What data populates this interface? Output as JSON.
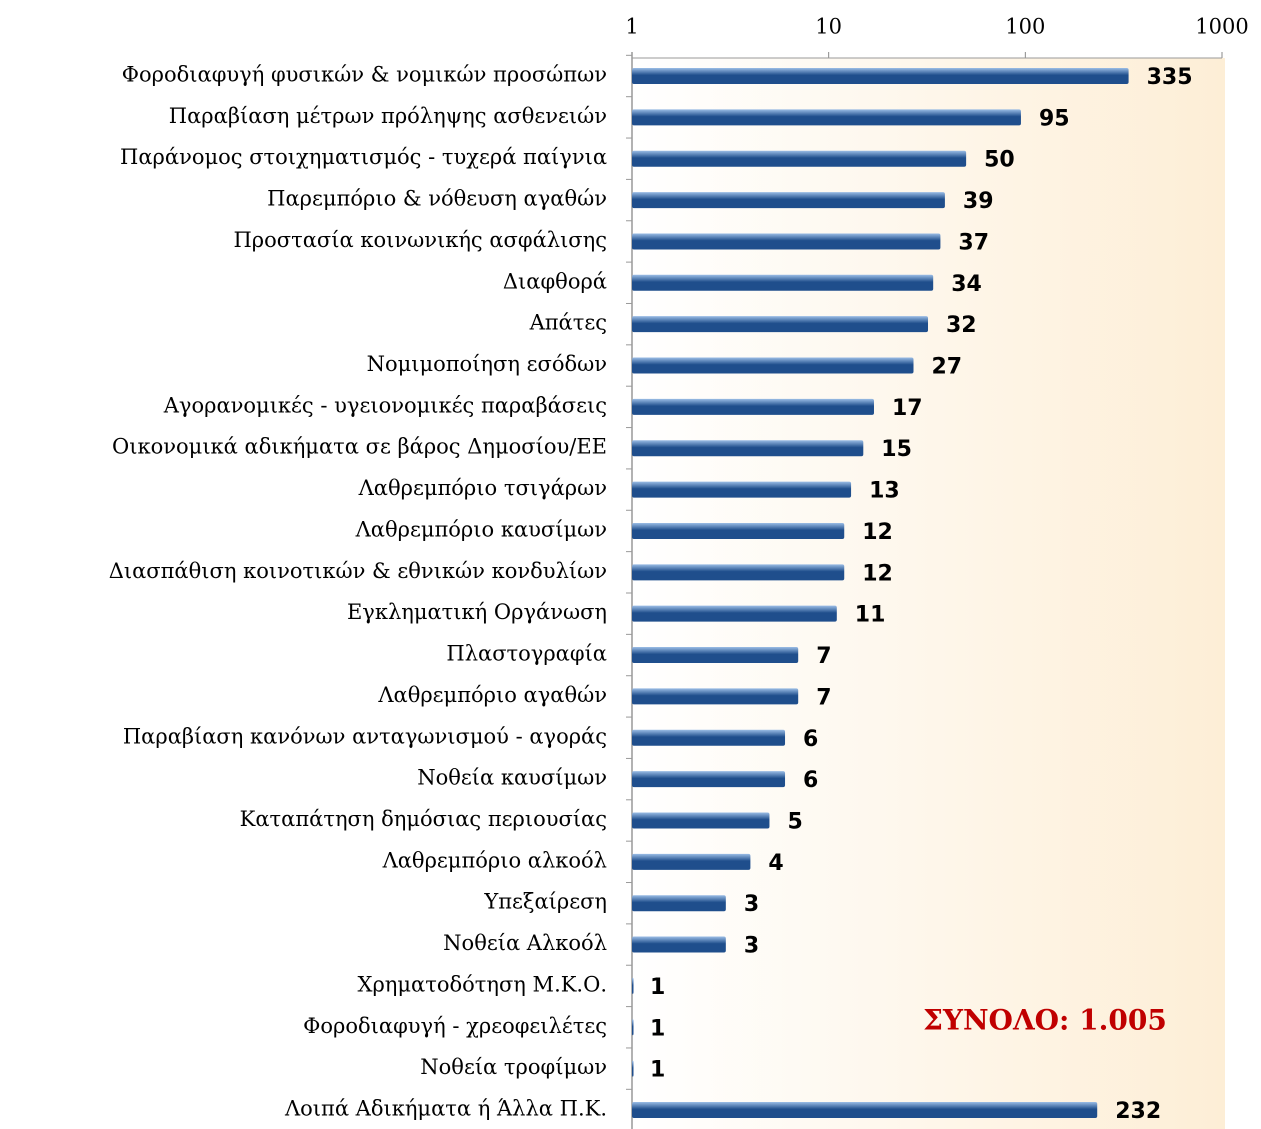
{
  "chart_data": {
    "type": "bar",
    "orientation": "horizontal",
    "xscale": "log",
    "categories": [
      "Φοροδιαφυγή φυσικών & νομικών προσώπων",
      "Παραβίαση μέτρων πρόληψης ασθενειών",
      "Παράνομος στοιχηματισμός - τυχερά παίγνια",
      "Παρεμπόριο & νόθευση αγαθών",
      "Προστασία κοινωνικής ασφάλισης",
      "Διαφθορά",
      "Απάτες",
      "Νομιμοποίηση εσόδων",
      "Αγορανομικές - υγειονομικές παραβάσεις",
      "Οικονομικά αδικήματα σε βάρος Δημοσίου/ΕΕ",
      "Λαθρεμπόριο τσιγάρων",
      "Λαθρεμπόριο καυσίμων",
      "Διασπάθιση κοινοτικών & εθνικών κονδυλίων",
      "Εγκληματική Οργάνωση",
      "Πλαστογραφία",
      "Λαθρεμπόριο αγαθών",
      "Παραβίαση κανόνων ανταγωνισμού - αγοράς",
      "Νοθεία καυσίμων",
      "Καταπάτηση δημόσιας περιουσίας",
      "Λαθρεμπόριο αλκοόλ",
      "Υπεξαίρεση",
      "Νοθεία Αλκοόλ",
      "Χρηματοδότηση Μ.Κ.Ο.",
      "Φοροδιαφυγή - χρεοφειλέτες",
      "Νοθεία τροφίμων",
      "Λοιπά Αδικήματα ή Άλλα Π.Κ."
    ],
    "values": [
      335,
      95,
      50,
      39,
      37,
      34,
      32,
      27,
      17,
      15,
      13,
      12,
      12,
      11,
      7,
      7,
      6,
      6,
      5,
      4,
      3,
      3,
      1,
      1,
      1,
      232
    ],
    "color": "#1f4e8c",
    "xlim": [
      1,
      1000
    ],
    "xticks": [
      1,
      10,
      100,
      1000
    ],
    "annotation": "ΣΥΝΟΛΟ: 1.005"
  }
}
